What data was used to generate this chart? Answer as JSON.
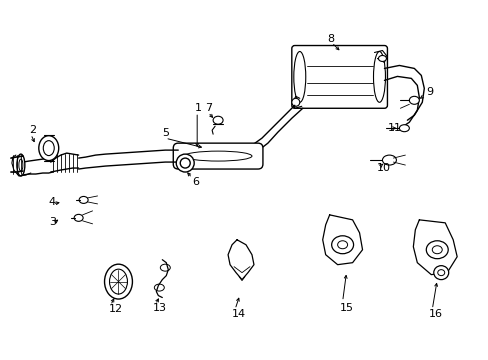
{
  "bg_color": "#ffffff",
  "fig_width": 4.89,
  "fig_height": 3.6,
  "dpi": 100,
  "lw": 1.0
}
